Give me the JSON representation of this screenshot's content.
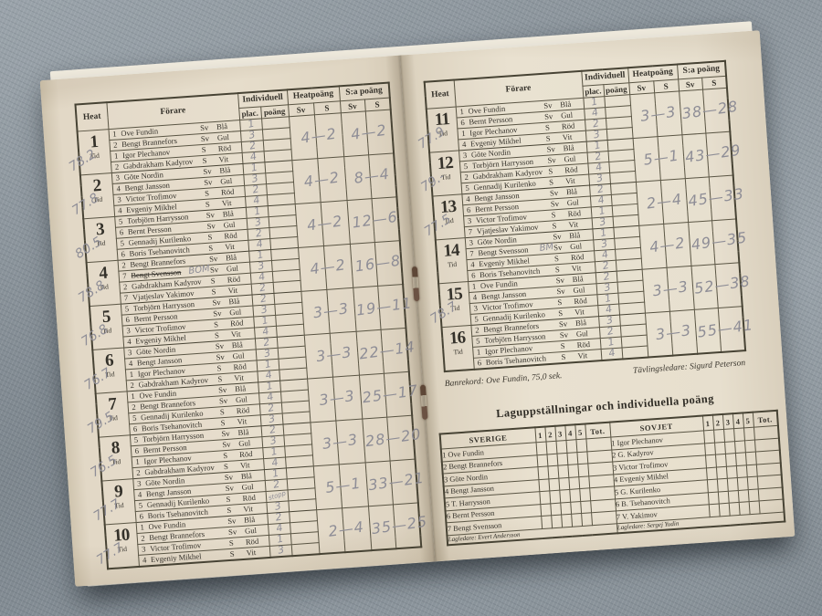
{
  "colors": {
    "fabric_background": "#8f989f",
    "paper": "#e6ddcb",
    "print_ink": "#34312a",
    "pencil": "#8e8d96",
    "staple": "#6b5243"
  },
  "table_headers": {
    "heat": "Heat",
    "forare": "Förare",
    "individuell": "Individuell",
    "plac": "plac.",
    "poang": "poäng",
    "heatpoang": "Heatpoäng",
    "sa_poang": "S:a poäng",
    "sv": "Sv",
    "s": "S",
    "tid": "Tid"
  },
  "left_page_heats": [
    {
      "num": "1",
      "tid": "78.2",
      "heat_points": "4—2",
      "total_points": "4—2",
      "riders": [
        {
          "no": "1",
          "name": "Ove Fundin",
          "team": "Sv",
          "helmet": "Blå",
          "plac": "1",
          "note": "",
          "strike": false
        },
        {
          "no": "2",
          "name": "Bengt Brannefors",
          "team": "Sv",
          "helmet": "Gul",
          "plac": "3",
          "note": "",
          "strike": false
        },
        {
          "no": "1",
          "name": "Igor Plechanov",
          "team": "S",
          "helmet": "Röd",
          "plac": "2",
          "note": "",
          "strike": false
        },
        {
          "no": "2",
          "name": "Gabdrakham Kadyrov",
          "team": "S",
          "helmet": "Vit",
          "plac": "4",
          "note": "",
          "strike": false
        }
      ]
    },
    {
      "num": "2",
      "tid": "77.8",
      "heat_points": "4—2",
      "total_points": "8—4",
      "riders": [
        {
          "no": "3",
          "name": "Göte Nordin",
          "team": "Sv",
          "helmet": "Blå",
          "plac": "1",
          "note": "",
          "strike": false
        },
        {
          "no": "4",
          "name": "Bengt Jansson",
          "team": "Sv",
          "helmet": "Gul",
          "plac": "3",
          "note": "",
          "strike": false
        },
        {
          "no": "3",
          "name": "Victor Trofimov",
          "team": "S",
          "helmet": "Röd",
          "plac": "2",
          "note": "",
          "strike": false
        },
        {
          "no": "4",
          "name": "Evgeniy Mikhel",
          "team": "S",
          "helmet": "Vit",
          "plac": "4",
          "note": "",
          "strike": false
        }
      ]
    },
    {
      "num": "3",
      "tid": "80.5",
      "heat_points": "4—2",
      "total_points": "12—6",
      "riders": [
        {
          "no": "5",
          "name": "Torbjörn Harrysson",
          "team": "Sv",
          "helmet": "Blå",
          "plac": "1",
          "note": "",
          "strike": false
        },
        {
          "no": "6",
          "name": "Bernt Persson",
          "team": "Sv",
          "helmet": "Gul",
          "plac": "3",
          "note": "",
          "strike": false
        },
        {
          "no": "5",
          "name": "Gennadij Kurilenko",
          "team": "S",
          "helmet": "Röd",
          "plac": "2",
          "note": "",
          "strike": false
        },
        {
          "no": "6",
          "name": "Boris Tsehanovitch",
          "team": "S",
          "helmet": "Vit",
          "plac": "4",
          "note": "",
          "strike": false
        }
      ]
    },
    {
      "num": "4",
      "tid": "78.8",
      "heat_points": "4—2",
      "total_points": "16—8",
      "riders": [
        {
          "no": "2",
          "name": "Bengt Brannefors",
          "team": "Sv",
          "helmet": "Blå",
          "plac": "1",
          "note": "",
          "strike": false
        },
        {
          "no": "7",
          "name": "Bengt Svensson",
          "team": "Sv",
          "helmet": "Gul",
          "plac": "3",
          "note": "BOM",
          "strike": true
        },
        {
          "no": "2",
          "name": "Gabdrakham Kadyrov",
          "team": "S",
          "helmet": "Röd",
          "plac": "4",
          "note": "",
          "strike": false
        },
        {
          "no": "7",
          "name": "Vjatjeslav Yakimov",
          "team": "S",
          "helmet": "Vit",
          "plac": "2",
          "note": "",
          "strike": false
        }
      ]
    },
    {
      "num": "5",
      "tid": "76.8",
      "heat_points": "3—3",
      "total_points": "19—11",
      "riders": [
        {
          "no": "5",
          "name": "Torbjörn Harrysson",
          "team": "Sv",
          "helmet": "Blå",
          "plac": "2",
          "note": "",
          "strike": false
        },
        {
          "no": "6",
          "name": "Bernt Persson",
          "team": "Sv",
          "helmet": "Gul",
          "plac": "3",
          "note": "",
          "strike": false
        },
        {
          "no": "3",
          "name": "Victor Trofimov",
          "team": "S",
          "helmet": "Röd",
          "plac": "1",
          "note": "",
          "strike": false
        },
        {
          "no": "4",
          "name": "Evgeniy Mikhel",
          "team": "S",
          "helmet": "Vit",
          "plac": "4",
          "note": "",
          "strike": false
        }
      ]
    },
    {
      "num": "6",
      "tid": "76.7",
      "heat_points": "3—3",
      "total_points": "22—14",
      "riders": [
        {
          "no": "3",
          "name": "Göte Nordin",
          "team": "Sv",
          "helmet": "Blå",
          "plac": "2",
          "note": "",
          "strike": false
        },
        {
          "no": "4",
          "name": "Bengt Jansson",
          "team": "Sv",
          "helmet": "Gul",
          "plac": "3",
          "note": "",
          "strike": false
        },
        {
          "no": "1",
          "name": "Igor Plechanov",
          "team": "S",
          "helmet": "Röd",
          "plac": "1",
          "note": "",
          "strike": false
        },
        {
          "no": "2",
          "name": "Gabdrakham Kadyrov",
          "team": "S",
          "helmet": "Vit",
          "plac": "4",
          "note": "",
          "strike": false
        }
      ]
    },
    {
      "num": "7",
      "tid": "79.5",
      "heat_points": "3—3",
      "total_points": "25—17",
      "riders": [
        {
          "no": "1",
          "name": "Ove Fundin",
          "team": "Sv",
          "helmet": "Blå",
          "plac": "1",
          "note": "",
          "strike": false
        },
        {
          "no": "2",
          "name": "Bengt Brannefors",
          "team": "Sv",
          "helmet": "Gul",
          "plac": "4",
          "note": "",
          "strike": false
        },
        {
          "no": "5",
          "name": "Gennadij Kurilenko",
          "team": "S",
          "helmet": "Röd",
          "plac": "2",
          "note": "",
          "strike": false
        },
        {
          "no": "6",
          "name": "Boris Tsehanovitch",
          "team": "S",
          "helmet": "Vit",
          "plac": "3",
          "note": "",
          "strike": false
        }
      ]
    },
    {
      "num": "8",
      "tid": "76.5",
      "heat_points": "3—3",
      "total_points": "28—20",
      "riders": [
        {
          "no": "5",
          "name": "Torbjörn Harrysson",
          "team": "Sv",
          "helmet": "Blå",
          "plac": "2",
          "note": "",
          "strike": false
        },
        {
          "no": "6",
          "name": "Bernt Persson",
          "team": "Sv",
          "helmet": "Gul",
          "plac": "3",
          "note": "",
          "strike": false
        },
        {
          "no": "1",
          "name": "Igor Plechanov",
          "team": "S",
          "helmet": "Röd",
          "plac": "1",
          "note": "",
          "strike": false
        },
        {
          "no": "2",
          "name": "Gabdrakham Kadyrov",
          "team": "S",
          "helmet": "Vit",
          "plac": "4",
          "note": "",
          "strike": false
        }
      ]
    },
    {
      "num": "9",
      "tid": "77.7",
      "heat_points": "5—1",
      "total_points": "33—21",
      "riders": [
        {
          "no": "3",
          "name": "Göte Nordin",
          "team": "Sv",
          "helmet": "Blå",
          "plac": "1",
          "note": "",
          "strike": false
        },
        {
          "no": "4",
          "name": "Bengt Jansson",
          "team": "Sv",
          "helmet": "Gul",
          "plac": "2",
          "note": "",
          "strike": false
        },
        {
          "no": "5",
          "name": "Gennadij Kurilenko",
          "team": "S",
          "helmet": "Röd",
          "plac": "stopp",
          "note": "",
          "strike": false
        },
        {
          "no": "6",
          "name": "Boris Tsehanovitch",
          "team": "S",
          "helmet": "Vit",
          "plac": "3",
          "note": "",
          "strike": false
        }
      ]
    },
    {
      "num": "10",
      "tid": "77.7",
      "heat_points": "2—4",
      "total_points": "35—25",
      "riders": [
        {
          "no": "1",
          "name": "Ove Fundin",
          "team": "Sv",
          "helmet": "Blå",
          "plac": "2",
          "note": "",
          "strike": false
        },
        {
          "no": "2",
          "name": "Bengt Brannefors",
          "team": "Sv",
          "helmet": "Gul",
          "plac": "4",
          "note": "",
          "strike": false
        },
        {
          "no": "3",
          "name": "Victor Trofimov",
          "team": "S",
          "helmet": "Röd",
          "plac": "1",
          "note": "",
          "strike": false
        },
        {
          "no": "4",
          "name": "Evgeniy Mikhel",
          "team": "S",
          "helmet": "Vit",
          "plac": "3",
          "note": "",
          "strike": false
        }
      ]
    }
  ],
  "right_page_heats": [
    {
      "num": "11",
      "tid": "77.9",
      "heat_points": "3—3",
      "total_points": "38—28",
      "riders": [
        {
          "no": "1",
          "name": "Ove Fundin",
          "team": "Sv",
          "helmet": "Blå",
          "plac": "1",
          "note": "",
          "strike": false
        },
        {
          "no": "6",
          "name": "Bernt Persson",
          "team": "Sv",
          "helmet": "Gul",
          "plac": "4",
          "note": "",
          "strike": false
        },
        {
          "no": "1",
          "name": "Igor Plechanov",
          "team": "S",
          "helmet": "Röd",
          "plac": "2",
          "note": "",
          "strike": false
        },
        {
          "no": "4",
          "name": "Evgeniy Mikhel",
          "team": "S",
          "helmet": "Vit",
          "plac": "3",
          "note": "",
          "strike": false
        }
      ]
    },
    {
      "num": "12",
      "tid": "79.-",
      "heat_points": "5—1",
      "total_points": "43—29",
      "riders": [
        {
          "no": "3",
          "name": "Göte Nordin",
          "team": "Sv",
          "helmet": "Blå",
          "plac": "1",
          "note": "",
          "strike": false
        },
        {
          "no": "5",
          "name": "Torbjörn Harrysson",
          "team": "Sv",
          "helmet": "Gul",
          "plac": "2",
          "note": "",
          "strike": false
        },
        {
          "no": "2",
          "name": "Gabdrakham Kadyrov",
          "team": "S",
          "helmet": "Röd",
          "plac": "4",
          "note": "",
          "strike": false
        },
        {
          "no": "5",
          "name": "Gennadij Kurilenko",
          "team": "S",
          "helmet": "Vit",
          "plac": "3",
          "note": "",
          "strike": false
        }
      ]
    },
    {
      "num": "13",
      "tid": "77.5",
      "heat_points": "2—4",
      "total_points": "45—33",
      "riders": [
        {
          "no": "4",
          "name": "Bengt Jansson",
          "team": "Sv",
          "helmet": "Blå",
          "plac": "2",
          "note": "",
          "strike": false
        },
        {
          "no": "6",
          "name": "Bernt Persson",
          "team": "Sv",
          "helmet": "Gul",
          "plac": "4",
          "note": "",
          "strike": false
        },
        {
          "no": "3",
          "name": "Victor Trofimov",
          "team": "S",
          "helmet": "Röd",
          "plac": "1",
          "note": "",
          "strike": false
        },
        {
          "no": "7",
          "name": "Vjatjeslav Yakimov",
          "team": "S",
          "helmet": "Vit",
          "plac": "3",
          "note": "",
          "strike": false
        }
      ]
    },
    {
      "num": "14",
      "tid": "",
      "heat_points": "4—2",
      "total_points": "49—35",
      "riders": [
        {
          "no": "3",
          "name": "Göte Nordin",
          "team": "Sv",
          "helmet": "Blå",
          "plac": "1",
          "note": "",
          "strike": false
        },
        {
          "no": "7",
          "name": "Bengt Svensson",
          "team": "Sv",
          "helmet": "Gul",
          "plac": "3",
          "note": "BM",
          "strike": false
        },
        {
          "no": "4",
          "name": "Evgeniy Mikhel",
          "team": "S",
          "helmet": "Röd",
          "plac": "4",
          "note": "",
          "strike": false
        },
        {
          "no": "6",
          "name": "Boris Tsehanovitch",
          "team": "S",
          "helmet": "Vit",
          "plac": "2",
          "note": "",
          "strike": false
        }
      ]
    },
    {
      "num": "15",
      "tid": "78.7",
      "heat_points": "3—3",
      "total_points": "52—38",
      "riders": [
        {
          "no": "1",
          "name": "Ove Fundin",
          "team": "Sv",
          "helmet": "Blå",
          "plac": "2",
          "note": "",
          "strike": false
        },
        {
          "no": "4",
          "name": "Bengt Jansson",
          "team": "Sv",
          "helmet": "Gul",
          "plac": "3",
          "note": "",
          "strike": false
        },
        {
          "no": "3",
          "name": "Victor Trofimov",
          "team": "S",
          "helmet": "Röd",
          "plac": "1",
          "note": "",
          "strike": false
        },
        {
          "no": "5",
          "name": "Gennadij Kurilenko",
          "team": "S",
          "helmet": "Vit",
          "plac": "4",
          "note": "",
          "strike": false
        }
      ]
    },
    {
      "num": "16",
      "tid": "",
      "heat_points": "3—3",
      "total_points": "55—41",
      "riders": [
        {
          "no": "2",
          "name": "Bengt Brannefors",
          "team": "Sv",
          "helmet": "Blå",
          "plac": "3",
          "note": "",
          "strike": false
        },
        {
          "no": "5",
          "name": "Torbjörn Harrysson",
          "team": "Sv",
          "helmet": "Gul",
          "plac": "2",
          "note": "",
          "strike": false
        },
        {
          "no": "1",
          "name": "Igor Plechanov",
          "team": "S",
          "helmet": "Röd",
          "plac": "1",
          "note": "",
          "strike": false
        },
        {
          "no": "6",
          "name": "Boris Tsehanovitch",
          "team": "S",
          "helmet": "Vit",
          "plac": "4",
          "note": "",
          "strike": false
        }
      ]
    }
  ],
  "notes": {
    "banrekord": "Banrekord: Ove Fundin, 75,0 sek.",
    "tavlingsledare": "Tävlingsledare: Sigurd Peterson"
  },
  "lineups": {
    "title": "Laguppställningar och individuella poäng",
    "point_columns": [
      "1",
      "2",
      "3",
      "4",
      "5"
    ],
    "total_label": "Tot.",
    "teams": [
      {
        "name": "SVERIGE",
        "riders": [
          "1 Ove Fundin",
          "2 Bengt Brannefors",
          "3 Göte Nordin",
          "4 Bengt Jansson",
          "5 T. Harrysson",
          "6 Bernt Persson",
          "7 Bengt Svensson"
        ],
        "leader": "Lagledare: Evert Andersson"
      },
      {
        "name": "SOVJET",
        "riders": [
          "1 Igor Plechanov",
          "2 G. Kadyrov",
          "3 Victor Trofimov",
          "4 Evgeniy Mikhel",
          "5 G. Kurilenko",
          "6 B. Tsehanovitch",
          "7 V. Yakimov"
        ],
        "leader": "Lagledare: Sergej Yudin"
      }
    ]
  }
}
